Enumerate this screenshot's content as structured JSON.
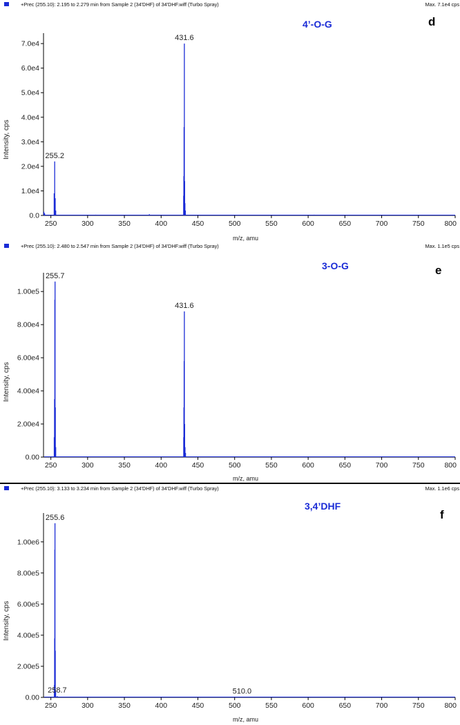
{
  "chart_data": [
    {
      "type": "line",
      "header": "+Prec (255.10): 2.195 to 2.279 min from Sample 2 (34'DHF) of 34'DHF.wiff (Turbo Spray)",
      "max_label": "Max. 7.1e4 cps",
      "title": "4’-O-G",
      "panel_letter": "d",
      "xlabel": "m/z, amu",
      "ylabel": "Intensity, cps",
      "xlim": [
        240,
        800
      ],
      "ylim": [
        0,
        72000
      ],
      "xticks": [
        250,
        300,
        350,
        400,
        450,
        500,
        550,
        600,
        650,
        700,
        750,
        800
      ],
      "yticks": [
        {
          "value": 0,
          "label": "0.0"
        },
        {
          "value": 10000,
          "label": "1.0e4"
        },
        {
          "value": 20000,
          "label": "2.0e4"
        },
        {
          "value": 30000,
          "label": "3.0e4"
        },
        {
          "value": 40000,
          "label": "4.0e4"
        },
        {
          "value": 50000,
          "label": "5.0e4"
        },
        {
          "value": 60000,
          "label": "6.0e4"
        },
        {
          "value": 70000,
          "label": "7.0e4"
        }
      ],
      "peaks": [
        {
          "mz": 240.5,
          "intensity": 1500
        },
        {
          "mz": 241.5,
          "intensity": 900
        },
        {
          "mz": 254.5,
          "intensity": 9000
        },
        {
          "mz": 255.2,
          "intensity": 22000
        },
        {
          "mz": 255.9,
          "intensity": 7000
        },
        {
          "mz": 256.6,
          "intensity": 2000
        },
        {
          "mz": 311,
          "intensity": 300
        },
        {
          "mz": 384,
          "intensity": 500
        },
        {
          "mz": 430.6,
          "intensity": 8000
        },
        {
          "mz": 430.9,
          "intensity": 16000
        },
        {
          "mz": 431.2,
          "intensity": 36000
        },
        {
          "mz": 431.6,
          "intensity": 70000
        },
        {
          "mz": 432.0,
          "intensity": 14000
        },
        {
          "mz": 432.4,
          "intensity": 5000
        },
        {
          "mz": 433.0,
          "intensity": 2000
        },
        {
          "mz": 608,
          "intensity": 300
        }
      ],
      "annotations": [
        {
          "mz": 255.2,
          "intensity": 22000,
          "label": "255.2"
        },
        {
          "mz": 431.6,
          "intensity": 70000,
          "label": "431.6"
        }
      ]
    },
    {
      "type": "line",
      "header": "+Prec (255.10): 2.480 to 2.547 min from Sample 2 (34'DHF) of 34'DHF.wiff (Turbo Spray)",
      "max_label": "Max. 1.1e5 cps",
      "title": "3-O-G",
      "panel_letter": "e",
      "xlabel": "m/z, amu",
      "ylabel": "Intensity, cps",
      "xlim": [
        240,
        800
      ],
      "ylim": [
        0,
        108000
      ],
      "xticks": [
        250,
        300,
        350,
        400,
        450,
        500,
        550,
        600,
        650,
        700,
        750,
        800
      ],
      "yticks": [
        {
          "value": 0,
          "label": "0.00"
        },
        {
          "value": 20000,
          "label": "2.00e4"
        },
        {
          "value": 40000,
          "label": "4.00e4"
        },
        {
          "value": 60000,
          "label": "6.00e4"
        },
        {
          "value": 80000,
          "label": "8.00e4"
        },
        {
          "value": 100000,
          "label": "1.00e5"
        }
      ],
      "peaks": [
        {
          "mz": 254.6,
          "intensity": 12000
        },
        {
          "mz": 255.0,
          "intensity": 35000
        },
        {
          "mz": 255.4,
          "intensity": 95000
        },
        {
          "mz": 255.7,
          "intensity": 106000
        },
        {
          "mz": 256.1,
          "intensity": 30000
        },
        {
          "mz": 256.6,
          "intensity": 6000
        },
        {
          "mz": 430.7,
          "intensity": 12000
        },
        {
          "mz": 431.0,
          "intensity": 30000
        },
        {
          "mz": 431.3,
          "intensity": 58000
        },
        {
          "mz": 431.6,
          "intensity": 88000
        },
        {
          "mz": 432.0,
          "intensity": 20000
        },
        {
          "mz": 432.5,
          "intensity": 6000
        },
        {
          "mz": 433.2,
          "intensity": 2500
        }
      ],
      "annotations": [
        {
          "mz": 255.7,
          "intensity": 106000,
          "label": "255.7"
        },
        {
          "mz": 431.6,
          "intensity": 88000,
          "label": "431.6"
        }
      ]
    },
    {
      "type": "line",
      "header": "+Prec (255.10): 3.133 to 3.234 min from Sample 2 (34'DHF) of 34'DHF.wiff (Turbo Spray)",
      "max_label": "Max. 1.1e6 cps",
      "title": "3,4’DHF",
      "panel_letter": "f",
      "xlabel": "m/z, amu",
      "ylabel": "Intensity, cps",
      "xlim": [
        240,
        800
      ],
      "ylim": [
        0,
        1150000
      ],
      "xticks": [
        250,
        300,
        350,
        400,
        450,
        500,
        550,
        600,
        650,
        700,
        750,
        800
      ],
      "yticks": [
        {
          "value": 0,
          "label": "0.00"
        },
        {
          "value": 200000,
          "label": "2.00e5"
        },
        {
          "value": 400000,
          "label": "4.00e5"
        },
        {
          "value": 600000,
          "label": "6.00e5"
        },
        {
          "value": 800000,
          "label": "8.00e5"
        },
        {
          "value": 1000000,
          "label": "1.00e6"
        }
      ],
      "peaks": [
        {
          "mz": 254.8,
          "intensity": 80000
        },
        {
          "mz": 255.1,
          "intensity": 380000
        },
        {
          "mz": 255.4,
          "intensity": 950000
        },
        {
          "mz": 255.6,
          "intensity": 1120000
        },
        {
          "mz": 256.0,
          "intensity": 300000
        },
        {
          "mz": 256.5,
          "intensity": 40000
        },
        {
          "mz": 258.7,
          "intensity": 8000
        },
        {
          "mz": 510.0,
          "intensity": 3000
        }
      ],
      "annotations": [
        {
          "mz": 255.6,
          "intensity": 1120000,
          "label": "255.6"
        },
        {
          "mz": 258.7,
          "intensity": 8000,
          "label": "258.7"
        },
        {
          "mz": 510.0,
          "intensity": 3000,
          "label": "510.0"
        }
      ]
    }
  ]
}
